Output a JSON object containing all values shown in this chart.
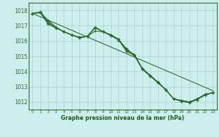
{
  "title": "Graphe pression niveau de la mer (hPa)",
  "bg_color": "#cceeed",
  "grid_color": "#aad8d8",
  "line_color": "#2d6a2d",
  "marker_color": "#2d6a2d",
  "xlabel_color": "#1a5c1a",
  "ylim": [
    1011.5,
    1018.5
  ],
  "xlim": [
    -0.5,
    23.5
  ],
  "yticks": [
    1012,
    1013,
    1014,
    1015,
    1016,
    1017,
    1018
  ],
  "xticks": [
    0,
    1,
    2,
    3,
    4,
    5,
    6,
    7,
    8,
    9,
    10,
    11,
    12,
    13,
    14,
    15,
    16,
    17,
    18,
    19,
    20,
    21,
    22,
    23
  ],
  "series": [
    [
      1017.8,
      1017.85,
      1017.1,
      1016.85,
      1016.6,
      1016.4,
      1016.2,
      1016.3,
      1016.85,
      1016.6,
      1016.35,
      1016.05,
      1015.3,
      1015.05,
      1014.15,
      1013.7,
      1013.25,
      1012.8,
      1012.2,
      1012.05,
      1011.95,
      1012.15,
      1012.45,
      1012.6
    ],
    [
      1017.8,
      1017.85,
      1017.15,
      1016.85,
      1016.6,
      1016.4,
      1016.2,
      1016.3,
      1016.65,
      1016.6,
      1016.35,
      1016.05,
      1015.5,
      1015.05,
      1014.15,
      1013.7,
      1013.3,
      1012.8,
      1012.2,
      1012.05,
      1012.0,
      1012.15,
      1012.5,
      1012.6
    ],
    [
      1017.8,
      1017.85,
      1017.25,
      1016.9,
      1016.6,
      1016.4,
      1016.2,
      1016.3,
      1016.9,
      1016.6,
      1016.4,
      1016.1,
      1015.4,
      1015.1,
      1014.2,
      1013.75,
      1013.3,
      1012.8,
      1012.2,
      1012.1,
      1012.0,
      1012.2,
      1012.5,
      1012.6
    ],
    [
      1017.8,
      1017.9,
      1017.35,
      1016.9,
      1016.6,
      1016.4,
      1016.25,
      1016.3,
      1016.9,
      1016.6,
      1016.4,
      1016.1,
      1015.4,
      1015.1,
      1014.2,
      1013.75,
      1013.3,
      1012.8,
      1012.2,
      1012.1,
      1012.0,
      1012.2,
      1012.5,
      1012.6
    ]
  ],
  "series_straight": [
    1017.8,
    1017.58,
    1017.36,
    1017.14,
    1016.92,
    1016.7,
    1016.48,
    1016.26,
    1016.04,
    1015.82,
    1015.6,
    1015.38,
    1015.16,
    1014.94,
    1014.72,
    1014.5,
    1014.28,
    1014.06,
    1013.84,
    1013.62,
    1013.4,
    1013.18,
    1012.96,
    1012.74
  ]
}
